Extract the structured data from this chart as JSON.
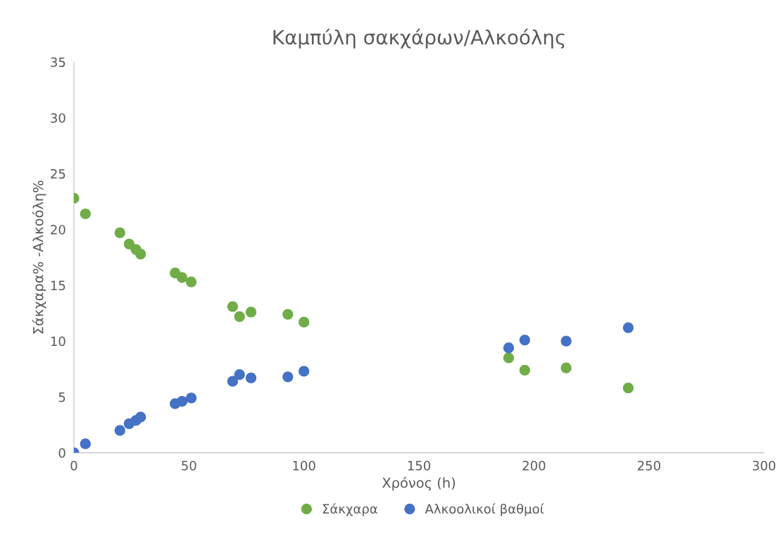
{
  "chart_data": {
    "type": "scatter",
    "title": "Καμπύλη σακχάρων/Αλκοόλης",
    "xlabel": "Χρόνος (h)",
    "ylabel": "Σάκχαρα% -Αλκοόλη%",
    "x": [
      0,
      5,
      20,
      24,
      27,
      29,
      44,
      47,
      51,
      69,
      72,
      77,
      93,
      100,
      189,
      196,
      214,
      241
    ],
    "series": [
      {
        "name": "Σάκχαρα",
        "color": "#70ad47",
        "values": [
          22.8,
          21.4,
          19.7,
          18.7,
          18.2,
          17.8,
          16.1,
          15.7,
          15.3,
          13.1,
          12.2,
          12.6,
          12.4,
          11.7,
          8.5,
          7.4,
          7.6,
          5.8
        ]
      },
      {
        "name": "Αλκοολικοί βαθμοί",
        "color": "#4472c4",
        "values": [
          0,
          0.8,
          2.0,
          2.6,
          2.9,
          3.2,
          4.4,
          4.6,
          4.9,
          6.4,
          7.0,
          6.7,
          6.8,
          7.3,
          9.4,
          10.1,
          10.0,
          11.2
        ]
      }
    ],
    "xlim": [
      0,
      300
    ],
    "xticks": [
      0,
      50,
      100,
      150,
      200,
      250,
      300
    ],
    "ylim": [
      0,
      35
    ],
    "yticks": [
      0,
      5,
      10,
      15,
      20,
      25,
      30,
      35
    ],
    "grid": false,
    "legend": "bottom",
    "marker": "circle"
  }
}
